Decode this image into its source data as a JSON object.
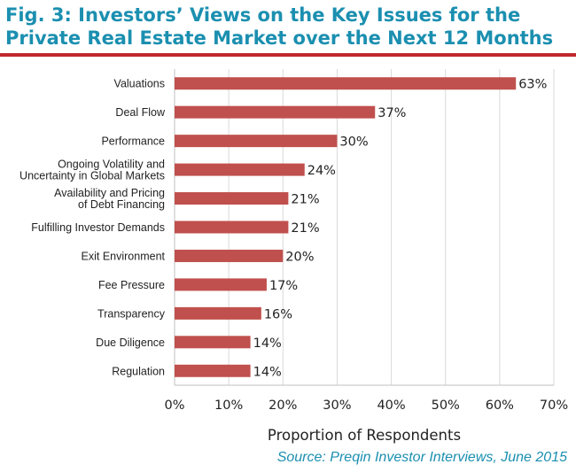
{
  "header": {
    "fig_label": "Fig. 3:",
    "title_text": " Investors’ Views on the Key Issues for the Private Real Estate Market over the Next 12 Months"
  },
  "source": "Source: Preqin Investor Interviews, June 2015",
  "colors": {
    "accent": "#1b8fb0",
    "rule": "#c0282d",
    "bar": "#c0504d",
    "grid": "#d9d9d9"
  },
  "chart_data": {
    "type": "bar",
    "orientation": "horizontal",
    "title": "Investors’ Views on the Key Issues for the Private Real Estate Market over the Next 12 Months",
    "xlabel": "Proportion of Respondents",
    "ylabel": "",
    "xlim": [
      0,
      70
    ],
    "x_ticks": [
      0,
      10,
      20,
      30,
      40,
      50,
      60,
      70
    ],
    "x_tick_labels": [
      "0%",
      "10%",
      "20%",
      "30%",
      "40%",
      "50%",
      "60%",
      "70%"
    ],
    "grid": "vertical",
    "categories": [
      "Valuations",
      "Deal Flow",
      "Performance",
      "Ongoing Volatility and\nUncertainty in Global Markets",
      "Availability and Pricing\nof Debt Financing",
      "Fulfilling Investor Demands",
      "Exit Environment",
      "Fee Pressure",
      "Transparency",
      "Due Diligence",
      "Regulation"
    ],
    "values": [
      63,
      37,
      30,
      24,
      21,
      21,
      20,
      17,
      16,
      14,
      14
    ],
    "value_labels": [
      "63%",
      "37%",
      "30%",
      "24%",
      "21%",
      "21%",
      "20%",
      "17%",
      "16%",
      "14%",
      "14%"
    ]
  }
}
